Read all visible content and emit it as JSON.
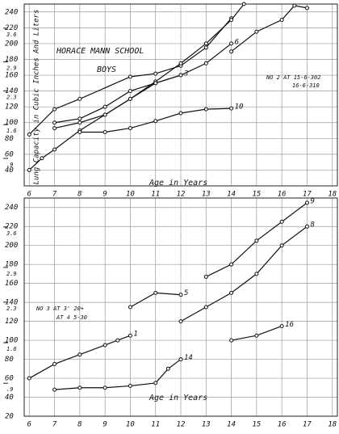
{
  "chart_data": [
    {
      "type": "line",
      "title": "HORACE MANN SCHOOL",
      "subtitle": "BOYS",
      "y_label": "Lung Capacity in Cubic Inches And Liters",
      "x_label": "Age in Years",
      "annotations": [
        "NO 2 AT 15-6-302",
        "16-6-310"
      ],
      "xlim": [
        5.8,
        18.2
      ],
      "xticks": [
        6,
        7,
        8,
        9,
        10,
        11,
        12,
        13,
        14,
        15,
        16,
        17,
        18
      ],
      "ylim": [
        20,
        250
      ],
      "yticks": [
        40,
        60,
        80,
        100,
        120,
        140,
        160,
        180,
        200,
        220,
        240
      ],
      "y2lim": [
        0.33,
        4.1
      ],
      "y2ticks": [
        3.6,
        2.9,
        2.3,
        1.6,
        {
          "value": 0.9,
          "label": ".9"
        }
      ],
      "grid": true,
      "color": "#111111",
      "series": [
        {
          "x": [
            6,
            7,
            8,
            10,
            11,
            12,
            13,
            14
          ],
          "values": [
            85,
            117,
            130,
            158,
            162,
            172,
            195,
            232
          ]
        },
        {
          "x": [
            6,
            6.5,
            7,
            8,
            9,
            10,
            11,
            12,
            13,
            14,
            14.5
          ],
          "values": [
            40,
            55,
            66,
            90,
            110,
            130,
            152,
            175,
            200,
            230,
            250
          ]
        },
        {
          "name": "10",
          "x": [
            8,
            9,
            10,
            11,
            12,
            13,
            14
          ],
          "values": [
            88,
            88,
            93,
            102,
            112,
            117,
            118
          ]
        },
        {
          "name": "3",
          "x": [
            7,
            8,
            9,
            10,
            11,
            12
          ],
          "values": [
            93,
            100,
            110,
            130,
            150,
            160
          ]
        },
        {
          "name": "6",
          "x": [
            7,
            8,
            9,
            10,
            11,
            12,
            13,
            14
          ],
          "values": [
            100,
            105,
            120,
            140,
            150,
            160,
            175,
            200
          ]
        },
        {
          "x": [
            14,
            15,
            16,
            16.5,
            17
          ],
          "values": [
            190,
            215,
            230,
            248,
            245
          ]
        }
      ]
    },
    {
      "type": "line",
      "x_label": "Age in Years",
      "annotations": [
        "NO 3 AT 3' 20+",
        "AT 4 5-30"
      ],
      "xlim": [
        5.8,
        18.2
      ],
      "xticks": [
        6,
        7,
        8,
        9,
        10,
        11,
        12,
        13,
        14,
        15,
        16,
        17,
        18
      ],
      "ylim": [
        20,
        250
      ],
      "yticks": [
        20,
        40,
        60,
        80,
        100,
        120,
        140,
        160,
        180,
        200,
        220,
        240
      ],
      "y2lim": [
        0.33,
        4.1
      ],
      "y2ticks": [
        3.6,
        2.9,
        2.3,
        1.6,
        {
          "value": 0.9,
          "label": ".9"
        }
      ],
      "grid": true,
      "color": "#111111",
      "series": [
        {
          "name": "9",
          "x": [
            13,
            14,
            15,
            16,
            17
          ],
          "values": [
            167,
            180,
            205,
            225,
            245
          ]
        },
        {
          "name": "8",
          "x": [
            12,
            13,
            14,
            15,
            16,
            17
          ],
          "values": [
            120,
            135,
            150,
            170,
            200,
            220
          ]
        },
        {
          "name": "5",
          "x": [
            10,
            11,
            12
          ],
          "values": [
            135,
            150,
            148
          ]
        },
        {
          "name": "1",
          "x": [
            6,
            7,
            8,
            9,
            9.5,
            10
          ],
          "values": [
            60,
            75,
            85,
            95,
            100,
            105
          ]
        },
        {
          "name": "14",
          "x": [
            7,
            8,
            9,
            10,
            11,
            11.5,
            12
          ],
          "values": [
            48,
            50,
            50,
            52,
            55,
            70,
            80
          ]
        },
        {
          "name": "16",
          "x": [
            14,
            15,
            16
          ],
          "values": [
            100,
            105,
            115
          ]
        }
      ]
    }
  ]
}
